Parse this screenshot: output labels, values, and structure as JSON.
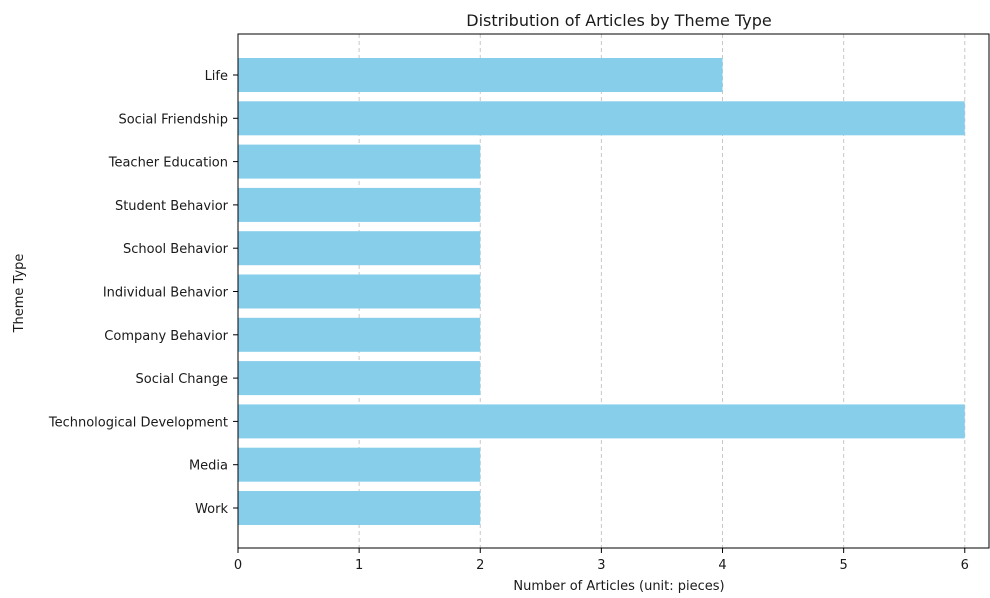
{
  "chart_data": {
    "type": "bar",
    "orientation": "horizontal",
    "title": "Distribution of Articles by Theme Type",
    "xlabel": "Number of Articles (unit: pieces)",
    "ylabel": "Theme Type",
    "categories": [
      "Life",
      "Social Friendship",
      "Teacher Education",
      "Student Behavior",
      "School Behavior",
      "Individual Behavior",
      "Company Behavior",
      "Social Change",
      "Technological Development",
      "Media",
      "Work"
    ],
    "values": [
      4,
      6,
      2,
      2,
      2,
      2,
      2,
      2,
      6,
      2,
      2
    ],
    "xlim": [
      0,
      6.2
    ],
    "xticks": [
      "0",
      "1",
      "2",
      "3",
      "4",
      "5",
      "6"
    ],
    "grid": "vertical dashed",
    "bar_color": "#87ceeb",
    "grid_color": "#c8c8c8"
  }
}
